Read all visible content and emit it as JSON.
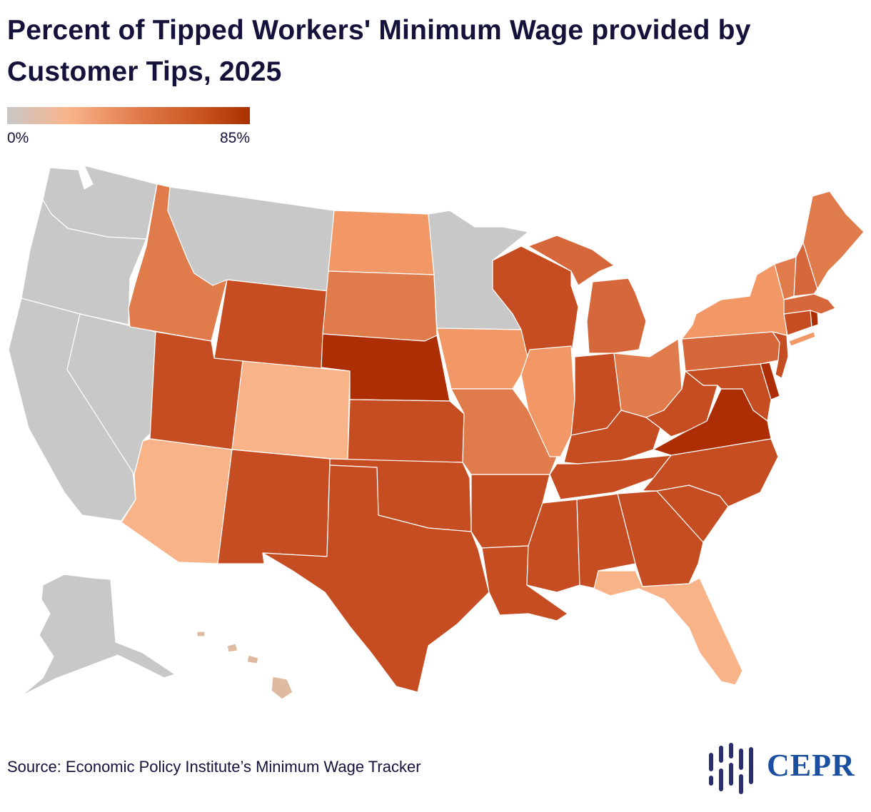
{
  "title": "Percent of Tipped Workers' Minimum Wage provided by Customer Tips, 2025",
  "legend": {
    "min_label": "0%",
    "max_label": "85%",
    "colors": [
      "#c8c8c8",
      "#f9b48a",
      "#e0794a",
      "#c9541f",
      "#a93000"
    ]
  },
  "colors": {
    "none": "#c8c8c8",
    "low": "#f8b388",
    "low_mid": "#f19866",
    "mid": "#e07c4c",
    "mid_high": "#d6673a",
    "high": "#c64d22",
    "very_high": "#ad2d04",
    "hawaii": "#dfb9a0"
  },
  "states": [
    {
      "name": "Washington",
      "tier": "none"
    },
    {
      "name": "Oregon",
      "tier": "none"
    },
    {
      "name": "California",
      "tier": "none"
    },
    {
      "name": "Nevada",
      "tier": "none"
    },
    {
      "name": "Montana",
      "tier": "none"
    },
    {
      "name": "Minnesota",
      "tier": "none"
    },
    {
      "name": "Alaska",
      "tier": "none"
    },
    {
      "name": "Hawaii",
      "tier": "hawaii"
    },
    {
      "name": "Idaho",
      "tier": "mid"
    },
    {
      "name": "Utah",
      "tier": "high"
    },
    {
      "name": "Arizona",
      "tier": "low"
    },
    {
      "name": "Wyoming",
      "tier": "high"
    },
    {
      "name": "Colorado",
      "tier": "low"
    },
    {
      "name": "New Mexico",
      "tier": "high"
    },
    {
      "name": "North Dakota",
      "tier": "low_mid"
    },
    {
      "name": "South Dakota",
      "tier": "mid"
    },
    {
      "name": "Nebraska",
      "tier": "very_high"
    },
    {
      "name": "Kansas",
      "tier": "high"
    },
    {
      "name": "Oklahoma",
      "tier": "high"
    },
    {
      "name": "Texas",
      "tier": "high"
    },
    {
      "name": "Iowa",
      "tier": "low_mid"
    },
    {
      "name": "Missouri",
      "tier": "mid"
    },
    {
      "name": "Arkansas",
      "tier": "high"
    },
    {
      "name": "Louisiana",
      "tier": "high"
    },
    {
      "name": "Wisconsin",
      "tier": "high"
    },
    {
      "name": "Illinois",
      "tier": "low_mid"
    },
    {
      "name": "Michigan",
      "tier": "mid_high"
    },
    {
      "name": "Indiana",
      "tier": "high"
    },
    {
      "name": "Ohio",
      "tier": "mid"
    },
    {
      "name": "Kentucky",
      "tier": "high"
    },
    {
      "name": "Tennessee",
      "tier": "high"
    },
    {
      "name": "Mississippi",
      "tier": "high"
    },
    {
      "name": "Alabama",
      "tier": "high"
    },
    {
      "name": "Georgia",
      "tier": "high"
    },
    {
      "name": "Florida",
      "tier": "low"
    },
    {
      "name": "South Carolina",
      "tier": "high"
    },
    {
      "name": "North Carolina",
      "tier": "high"
    },
    {
      "name": "Virginia",
      "tier": "very_high"
    },
    {
      "name": "West Virginia",
      "tier": "high"
    },
    {
      "name": "Maryland",
      "tier": "high"
    },
    {
      "name": "Delaware",
      "tier": "very_high"
    },
    {
      "name": "Pennsylvania",
      "tier": "mid_high"
    },
    {
      "name": "New Jersey",
      "tier": "high"
    },
    {
      "name": "New York",
      "tier": "low_mid"
    },
    {
      "name": "Connecticut",
      "tier": "high"
    },
    {
      "name": "Rhode Island",
      "tier": "very_high"
    },
    {
      "name": "Massachusetts",
      "tier": "mid_high"
    },
    {
      "name": "Vermont",
      "tier": "mid"
    },
    {
      "name": "New Hampshire",
      "tier": "mid_high"
    },
    {
      "name": "Maine",
      "tier": "mid"
    }
  ],
  "source": "Source: Economic Policy Institute’s Minimum Wage Tracker",
  "logo_text": "CEPR"
}
